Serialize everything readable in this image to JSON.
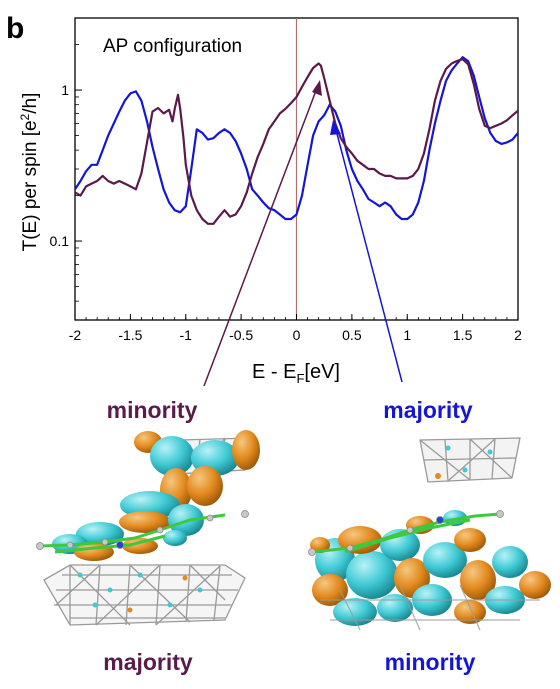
{
  "panel_letter": "b",
  "annotations": {
    "left_top": "minority",
    "right_top": "majority",
    "left_bottom": "majority",
    "right_bottom": "minority"
  },
  "colors": {
    "minority": "#5a1a4a",
    "majority": "#1515d8",
    "orbital_positive": "#e28a1e",
    "orbital_negative": "#3fc9d4",
    "fermi_line": "#b07070"
  },
  "chart_data": {
    "type": "line",
    "title": "AP configuration",
    "xlabel_main": "E - E",
    "xlabel_sub": "F",
    "xlabel_tail": "[eV]",
    "ylabel": "T(E) per spin [e",
    "ylabel_sup": "2",
    "ylabel_tail": "/h]",
    "xlim": [
      -2,
      2
    ],
    "ylim": [
      0.03,
      3
    ],
    "yscale": "log",
    "x_ticks": [
      -2,
      -1.5,
      -1,
      -0.5,
      0,
      0.5,
      1,
      1.5,
      2
    ],
    "x_tick_labels": [
      "-2",
      "-1.5",
      "-1",
      "-0.5",
      "0",
      "0.5",
      "1",
      "1.5",
      "2"
    ],
    "y_ticks": [
      0.1,
      1
    ],
    "y_tick_labels": [
      "0.1",
      "1"
    ],
    "fermi_level": 0,
    "series": [
      {
        "key": "minority",
        "color": "#5a1a4a",
        "x": [
          -2.0,
          -1.95,
          -1.9,
          -1.85,
          -1.8,
          -1.75,
          -1.7,
          -1.65,
          -1.6,
          -1.55,
          -1.5,
          -1.45,
          -1.4,
          -1.35,
          -1.3,
          -1.25,
          -1.2,
          -1.15,
          -1.12,
          -1.1,
          -1.07,
          -1.05,
          -1.02,
          -1.0,
          -0.95,
          -0.9,
          -0.85,
          -0.8,
          -0.75,
          -0.7,
          -0.65,
          -0.6,
          -0.55,
          -0.5,
          -0.45,
          -0.4,
          -0.35,
          -0.3,
          -0.25,
          -0.2,
          -0.15,
          -0.1,
          -0.05,
          0.0,
          0.05,
          0.1,
          0.15,
          0.2,
          0.22,
          0.25,
          0.3,
          0.35,
          0.4,
          0.45,
          0.5,
          0.55,
          0.6,
          0.65,
          0.7,
          0.75,
          0.8,
          0.85,
          0.9,
          0.95,
          1.0,
          1.05,
          1.1,
          1.15,
          1.2,
          1.25,
          1.3,
          1.35,
          1.4,
          1.45,
          1.5,
          1.55,
          1.6,
          1.65,
          1.7,
          1.75,
          1.8,
          1.85,
          1.9,
          1.95,
          2.0
        ],
        "y": [
          0.21,
          0.2,
          0.23,
          0.24,
          0.25,
          0.27,
          0.25,
          0.24,
          0.25,
          0.24,
          0.23,
          0.22,
          0.28,
          0.45,
          0.72,
          0.76,
          0.7,
          0.74,
          0.62,
          0.75,
          0.93,
          0.75,
          0.48,
          0.32,
          0.2,
          0.16,
          0.14,
          0.13,
          0.13,
          0.145,
          0.16,
          0.145,
          0.15,
          0.17,
          0.21,
          0.28,
          0.36,
          0.44,
          0.55,
          0.62,
          0.7,
          0.75,
          0.82,
          0.9,
          1.05,
          1.22,
          1.4,
          1.5,
          1.45,
          1.2,
          0.85,
          0.6,
          0.48,
          0.42,
          0.38,
          0.34,
          0.32,
          0.3,
          0.3,
          0.28,
          0.27,
          0.27,
          0.26,
          0.26,
          0.26,
          0.27,
          0.3,
          0.38,
          0.55,
          0.85,
          1.15,
          1.38,
          1.5,
          1.56,
          1.6,
          1.48,
          1.1,
          0.75,
          0.58,
          0.56,
          0.58,
          0.6,
          0.63,
          0.68,
          0.73
        ]
      },
      {
        "key": "majority",
        "color": "#1515d8",
        "x": [
          -2.0,
          -1.95,
          -1.9,
          -1.85,
          -1.8,
          -1.75,
          -1.7,
          -1.65,
          -1.6,
          -1.55,
          -1.5,
          -1.45,
          -1.4,
          -1.35,
          -1.3,
          -1.25,
          -1.2,
          -1.15,
          -1.1,
          -1.05,
          -1.0,
          -0.95,
          -0.9,
          -0.85,
          -0.8,
          -0.75,
          -0.7,
          -0.65,
          -0.6,
          -0.55,
          -0.5,
          -0.45,
          -0.4,
          -0.35,
          -0.3,
          -0.25,
          -0.2,
          -0.15,
          -0.1,
          -0.05,
          0.0,
          0.05,
          0.1,
          0.15,
          0.2,
          0.25,
          0.3,
          0.35,
          0.4,
          0.45,
          0.5,
          0.55,
          0.6,
          0.65,
          0.7,
          0.75,
          0.8,
          0.85,
          0.9,
          0.95,
          1.0,
          1.05,
          1.1,
          1.15,
          1.2,
          1.25,
          1.3,
          1.35,
          1.4,
          1.45,
          1.5,
          1.55,
          1.6,
          1.65,
          1.7,
          1.75,
          1.8,
          1.85,
          1.9,
          1.95,
          2.0
        ],
        "y": [
          0.22,
          0.25,
          0.29,
          0.32,
          0.32,
          0.4,
          0.5,
          0.6,
          0.72,
          0.85,
          0.95,
          0.98,
          0.85,
          0.62,
          0.42,
          0.3,
          0.22,
          0.18,
          0.16,
          0.155,
          0.17,
          0.3,
          0.55,
          0.52,
          0.47,
          0.48,
          0.52,
          0.55,
          0.52,
          0.46,
          0.38,
          0.3,
          0.22,
          0.2,
          0.18,
          0.165,
          0.16,
          0.15,
          0.14,
          0.14,
          0.15,
          0.2,
          0.32,
          0.5,
          0.62,
          0.68,
          0.8,
          0.72,
          0.58,
          0.4,
          0.3,
          0.25,
          0.22,
          0.19,
          0.18,
          0.17,
          0.18,
          0.17,
          0.15,
          0.14,
          0.14,
          0.15,
          0.18,
          0.25,
          0.4,
          0.6,
          0.85,
          1.15,
          1.35,
          1.5,
          1.65,
          1.55,
          1.25,
          0.9,
          0.65,
          0.52,
          0.46,
          0.44,
          0.45,
          0.47,
          0.52
        ]
      }
    ]
  }
}
